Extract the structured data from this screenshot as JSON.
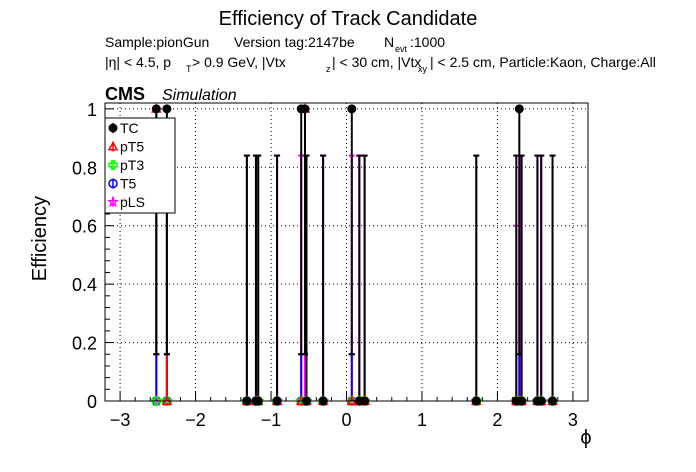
{
  "chart_data": {
    "type": "scatter",
    "title": "Efficiency of Track Candidate",
    "subtitle1": {
      "sample": "Sample:pionGun",
      "version": "Version tag:2147be",
      "n_base": "N",
      "n_sub": "evt",
      "n_value": ":1000"
    },
    "subtitle2": {
      "eta": "|η| < 4.5, p",
      "pt_sub": "T",
      "pt_rest": " > 0.9 GeV, |Vtx",
      "vz_sub": "z",
      "vz_rest": "| < 30 cm, |Vtx",
      "vxy_sub": "xy",
      "vxy_rest": "| < 2.5 cm, Particle:Kaon, Charge:All"
    },
    "cms_label": "CMS",
    "simulation_label": "Simulation",
    "xlabel": "ϕ",
    "ylabel": "Efficiency",
    "xlim": [
      -3.2,
      3.2
    ],
    "ylim": [
      0,
      1.02
    ],
    "xticks": [
      -3,
      -2,
      -1,
      0,
      1,
      2,
      3
    ],
    "xtick_labels": [
      "−3",
      "−2",
      "−1",
      "0",
      "1",
      "2",
      "3"
    ],
    "yticks": [
      0,
      0.2,
      0.4,
      0.6,
      0.8,
      1
    ],
    "ytick_labels": [
      "0",
      "0.2",
      "0.4",
      "0.6",
      "0.8",
      "1"
    ],
    "grid": true,
    "legend_position": "top-left",
    "legend": [
      {
        "name": "TC",
        "color": "#000000",
        "marker": "filled-circle"
      },
      {
        "name": "pT5",
        "color": "#ff0000",
        "marker": "open-triangle"
      },
      {
        "name": "pT3",
        "color": "#00ff00",
        "marker": "open-cross"
      },
      {
        "name": "T5",
        "color": "#0000ff",
        "marker": "open-circle"
      },
      {
        "name": "pLS",
        "color": "#ff00ff",
        "marker": "open-star"
      }
    ],
    "x": [
      -2.52,
      -2.38,
      -1.32,
      -1.2,
      -1.17,
      -0.92,
      -0.6,
      -0.55,
      -0.53,
      -0.31,
      0.07,
      0.17,
      0.24,
      1.72,
      2.25,
      2.29,
      2.32,
      2.53,
      2.58,
      2.73
    ],
    "series": [
      {
        "name": "TC",
        "color": "#000000",
        "values": [
          1,
          1,
          0,
          0,
          0,
          0,
          1,
          1,
          0,
          0,
          1,
          0,
          0,
          0,
          0,
          1,
          0,
          0,
          0,
          0
        ],
        "err_low": [
          0.84,
          0.84,
          0,
          0,
          0,
          0,
          0.84,
          0.84,
          0,
          0,
          0.84,
          0,
          0,
          0,
          0,
          0.84,
          0,
          0,
          0,
          0
        ],
        "err_high": [
          0,
          0,
          0.84,
          0.84,
          0.84,
          0.84,
          0,
          0,
          0.84,
          0.84,
          0,
          0.84,
          0.84,
          0.84,
          0.84,
          0,
          0.84,
          0.84,
          0.84,
          0.84
        ]
      },
      {
        "name": "pT5",
        "color": "#ff0000",
        "values": [
          1,
          0,
          0,
          0,
          0,
          0,
          0,
          1,
          0,
          0,
          0,
          0,
          0,
          0,
          0,
          0,
          0,
          0,
          0,
          0
        ],
        "err_low": [
          0.84,
          0,
          0,
          0,
          0,
          0,
          0,
          0.84,
          0,
          0,
          0,
          0,
          0,
          0,
          0,
          0,
          0,
          0,
          0,
          0
        ],
        "err_high": [
          0,
          0.84,
          0,
          0,
          0,
          0,
          0,
          0,
          0,
          0,
          0,
          0,
          0,
          0,
          0,
          0,
          0,
          0,
          0,
          0
        ]
      },
      {
        "name": "pT3",
        "color": "#00ff00",
        "values": [
          0,
          0,
          0,
          0,
          0,
          0,
          0,
          0,
          0,
          0,
          0,
          0,
          0,
          0,
          0,
          0,
          0,
          0,
          0,
          0
        ],
        "err_low": [
          0,
          0,
          0,
          0,
          0,
          0,
          0,
          0,
          0,
          0,
          0,
          0,
          0,
          0,
          0,
          0,
          0,
          0,
          0,
          0
        ],
        "err_high": [
          0,
          0,
          0,
          0,
          0,
          0,
          0,
          0,
          0,
          0,
          0,
          0,
          0,
          0,
          0,
          0,
          0,
          0,
          0,
          0
        ]
      },
      {
        "name": "T5",
        "color": "#0000ff",
        "values": [
          0,
          0,
          0,
          0,
          0,
          0,
          0,
          0,
          0,
          0,
          0,
          0,
          0,
          0,
          0,
          0,
          0,
          0,
          0,
          0
        ],
        "err_low": [
          0,
          0,
          0,
          0,
          0,
          0,
          0,
          0,
          0,
          0,
          0,
          0,
          0,
          0,
          0,
          0,
          0,
          0,
          0,
          0
        ],
        "err_high": [
          0.84,
          0.16,
          0,
          0,
          0,
          0,
          0.16,
          0,
          0,
          0,
          0.16,
          0,
          0,
          0,
          0,
          0.16,
          0,
          0,
          0,
          0
        ]
      },
      {
        "name": "pLS",
        "color": "#ff00ff",
        "values": [
          0,
          0,
          0,
          0,
          0,
          0,
          0,
          0,
          0,
          0,
          0,
          0,
          0,
          0,
          0,
          0,
          0,
          0,
          0,
          0
        ],
        "err_low": [
          0,
          0,
          0,
          0,
          0,
          0,
          0,
          0,
          0,
          0,
          0,
          0,
          0,
          0,
          0,
          0,
          0,
          0,
          0,
          0
        ],
        "err_high": [
          0.16,
          0.84,
          0.84,
          0.84,
          0.84,
          0.84,
          0.84,
          0.84,
          0.84,
          0.84,
          0.84,
          0.84,
          0.84,
          0.84,
          0.6,
          0.84,
          0.84,
          0.84,
          0.84,
          0.84
        ]
      }
    ]
  }
}
